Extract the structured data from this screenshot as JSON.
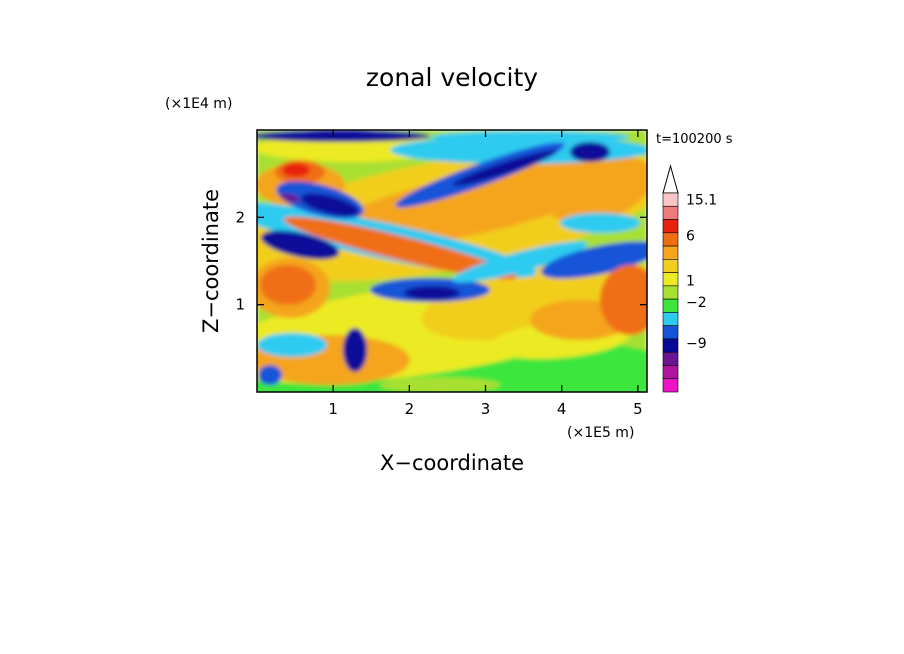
{
  "chart_data": {
    "type": "heatmap",
    "title": "zonal velocity",
    "time_label": "t=100200 s",
    "xlabel": "X−coordinate",
    "ylabel": "Z−coordinate",
    "x_scale_label": "(×1E5 m)",
    "y_scale_label": "(×1E4 m)",
    "xlim": [
      0,
      5.12
    ],
    "ylim": [
      0,
      3
    ],
    "x_ticks": [
      1,
      2,
      3,
      4,
      5
    ],
    "x_tick_labels": [
      "1",
      "2",
      "3",
      "4",
      "5"
    ],
    "y_ticks": [
      1,
      2
    ],
    "y_tick_labels": [
      "1",
      "2"
    ],
    "colorbar": {
      "labeled_levels": [
        "15.1",
        "6",
        "1",
        "−2",
        "−9"
      ],
      "colors_top_to_bottom": [
        "#f8c6c6",
        "#ef7a7a",
        "#e8240e",
        "#f06e12",
        "#f4a51c",
        "#f2ce1e",
        "#ecea22",
        "#a8e032",
        "#3ee63c",
        "#2ecbf0",
        "#1454d8",
        "#0a0a9a",
        "#6a1494",
        "#b0149e",
        "#ee14c8"
      ]
    },
    "grid": false
  }
}
